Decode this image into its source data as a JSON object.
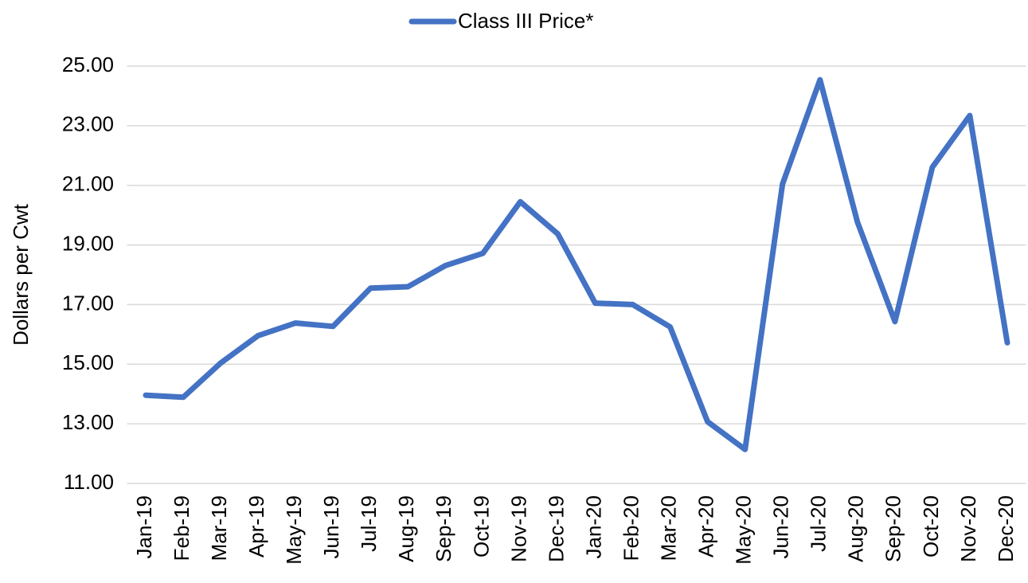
{
  "chart_data": {
    "type": "line",
    "y_label": "Dollars per Cwt",
    "categories": [
      "Jan-19",
      "Feb-19",
      "Mar-19",
      "Apr-19",
      "May-19",
      "Jun-19",
      "Jul-19",
      "Aug-19",
      "Sep-19",
      "Oct-19",
      "Nov-19",
      "Dec-19",
      "Jan-20",
      "Feb-20",
      "Mar-20",
      "Apr-20",
      "May-20",
      "Jun-20",
      "Jul-20",
      "Aug-20",
      "Sep-20",
      "Oct-20",
      "Nov-20",
      "Dec-20"
    ],
    "series": [
      {
        "name": "Class III Price*",
        "color": "#4472c4",
        "values": [
          13.96,
          13.89,
          15.04,
          15.96,
          16.38,
          16.27,
          17.55,
          17.6,
          18.31,
          18.72,
          20.45,
          19.37,
          17.05,
          17.0,
          16.25,
          13.07,
          12.14,
          21.04,
          24.54,
          19.77,
          16.43,
          21.61,
          23.34,
          15.72
        ]
      }
    ],
    "ylim": [
      11,
      25
    ],
    "yticks": [
      {
        "value": 11,
        "label": "11.00"
      },
      {
        "value": 13,
        "label": "13.00"
      },
      {
        "value": 15,
        "label": "15.00"
      },
      {
        "value": 17,
        "label": "17.00"
      },
      {
        "value": 19,
        "label": "19.00"
      },
      {
        "value": 21,
        "label": "21.00"
      },
      {
        "value": 23,
        "label": "23.00"
      },
      {
        "value": 25,
        "label": "25.00"
      }
    ],
    "grid": true,
    "legend": "top"
  }
}
